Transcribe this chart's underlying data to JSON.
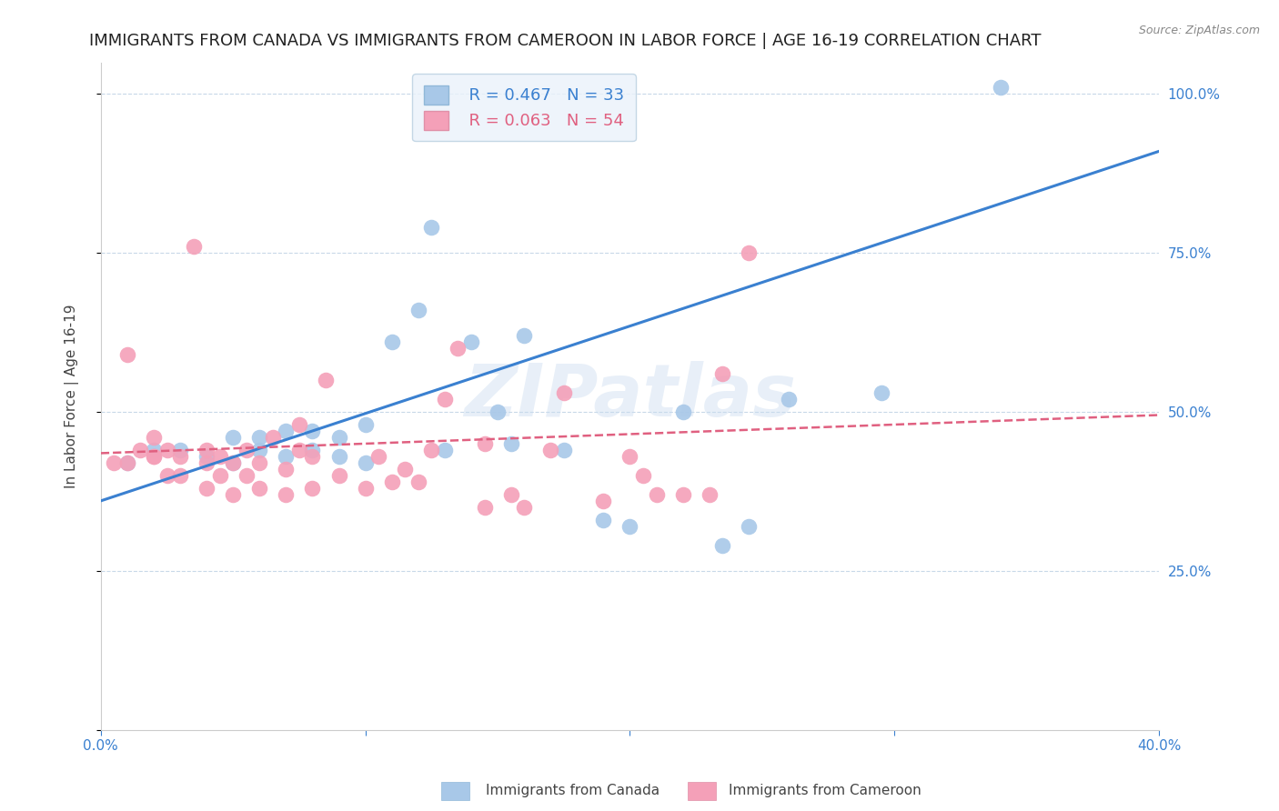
{
  "title": "IMMIGRANTS FROM CANADA VS IMMIGRANTS FROM CAMEROON IN LABOR FORCE | AGE 16-19 CORRELATION CHART",
  "source": "Source: ZipAtlas.com",
  "ylabel": "In Labor Force | Age 16-19",
  "xlim": [
    0.0,
    0.4
  ],
  "ylim": [
    0.0,
    1.05
  ],
  "canada_color": "#a8c8e8",
  "cameroon_color": "#f4a0b8",
  "canada_R": 0.467,
  "canada_N": 33,
  "cameroon_R": 0.063,
  "cameroon_N": 54,
  "canada_line_color": "#3a80d0",
  "cameroon_line_color": "#e06080",
  "watermark": "ZIPatlas",
  "canada_points_x": [
    0.01,
    0.02,
    0.03,
    0.04,
    0.05,
    0.05,
    0.06,
    0.06,
    0.07,
    0.07,
    0.08,
    0.08,
    0.09,
    0.09,
    0.1,
    0.1,
    0.11,
    0.12,
    0.125,
    0.13,
    0.14,
    0.15,
    0.155,
    0.16,
    0.175,
    0.19,
    0.2,
    0.22,
    0.235,
    0.245,
    0.26,
    0.295,
    0.34
  ],
  "canada_points_y": [
    0.42,
    0.44,
    0.44,
    0.43,
    0.42,
    0.46,
    0.44,
    0.46,
    0.43,
    0.47,
    0.44,
    0.47,
    0.43,
    0.46,
    0.42,
    0.48,
    0.61,
    0.66,
    0.79,
    0.44,
    0.61,
    0.5,
    0.45,
    0.62,
    0.44,
    0.33,
    0.32,
    0.5,
    0.29,
    0.32,
    0.52,
    0.53,
    1.01
  ],
  "cameroon_points_x": [
    0.005,
    0.01,
    0.01,
    0.015,
    0.02,
    0.02,
    0.02,
    0.025,
    0.025,
    0.03,
    0.03,
    0.035,
    0.04,
    0.04,
    0.04,
    0.045,
    0.045,
    0.05,
    0.05,
    0.055,
    0.055,
    0.06,
    0.06,
    0.065,
    0.07,
    0.07,
    0.075,
    0.075,
    0.08,
    0.08,
    0.085,
    0.09,
    0.1,
    0.105,
    0.11,
    0.115,
    0.12,
    0.125,
    0.13,
    0.135,
    0.145,
    0.145,
    0.155,
    0.16,
    0.17,
    0.175,
    0.19,
    0.2,
    0.205,
    0.21,
    0.22,
    0.23,
    0.235,
    0.245
  ],
  "cameroon_points_y": [
    0.42,
    0.59,
    0.42,
    0.44,
    0.43,
    0.46,
    0.43,
    0.4,
    0.44,
    0.4,
    0.43,
    0.76,
    0.38,
    0.42,
    0.44,
    0.4,
    0.43,
    0.37,
    0.42,
    0.4,
    0.44,
    0.38,
    0.42,
    0.46,
    0.37,
    0.41,
    0.44,
    0.48,
    0.38,
    0.43,
    0.55,
    0.4,
    0.38,
    0.43,
    0.39,
    0.41,
    0.39,
    0.44,
    0.52,
    0.6,
    0.35,
    0.45,
    0.37,
    0.35,
    0.44,
    0.53,
    0.36,
    0.43,
    0.4,
    0.37,
    0.37,
    0.37,
    0.56,
    0.75
  ],
  "legend_box_color": "#eaf2fb",
  "legend_border_color": "#b8cfe0",
  "grid_color": "#c8d8e8",
  "background_color": "#ffffff",
  "right_ytick_color": "#3a80d0",
  "title_fontsize": 13,
  "axis_label_fontsize": 11,
  "tick_fontsize": 11,
  "canada_line_x0": 0.0,
  "canada_line_y0": 0.36,
  "canada_line_x1": 0.4,
  "canada_line_y1": 0.91,
  "cameroon_line_x0": 0.0,
  "cameroon_line_y0": 0.435,
  "cameroon_line_x1": 0.4,
  "cameroon_line_y1": 0.495
}
